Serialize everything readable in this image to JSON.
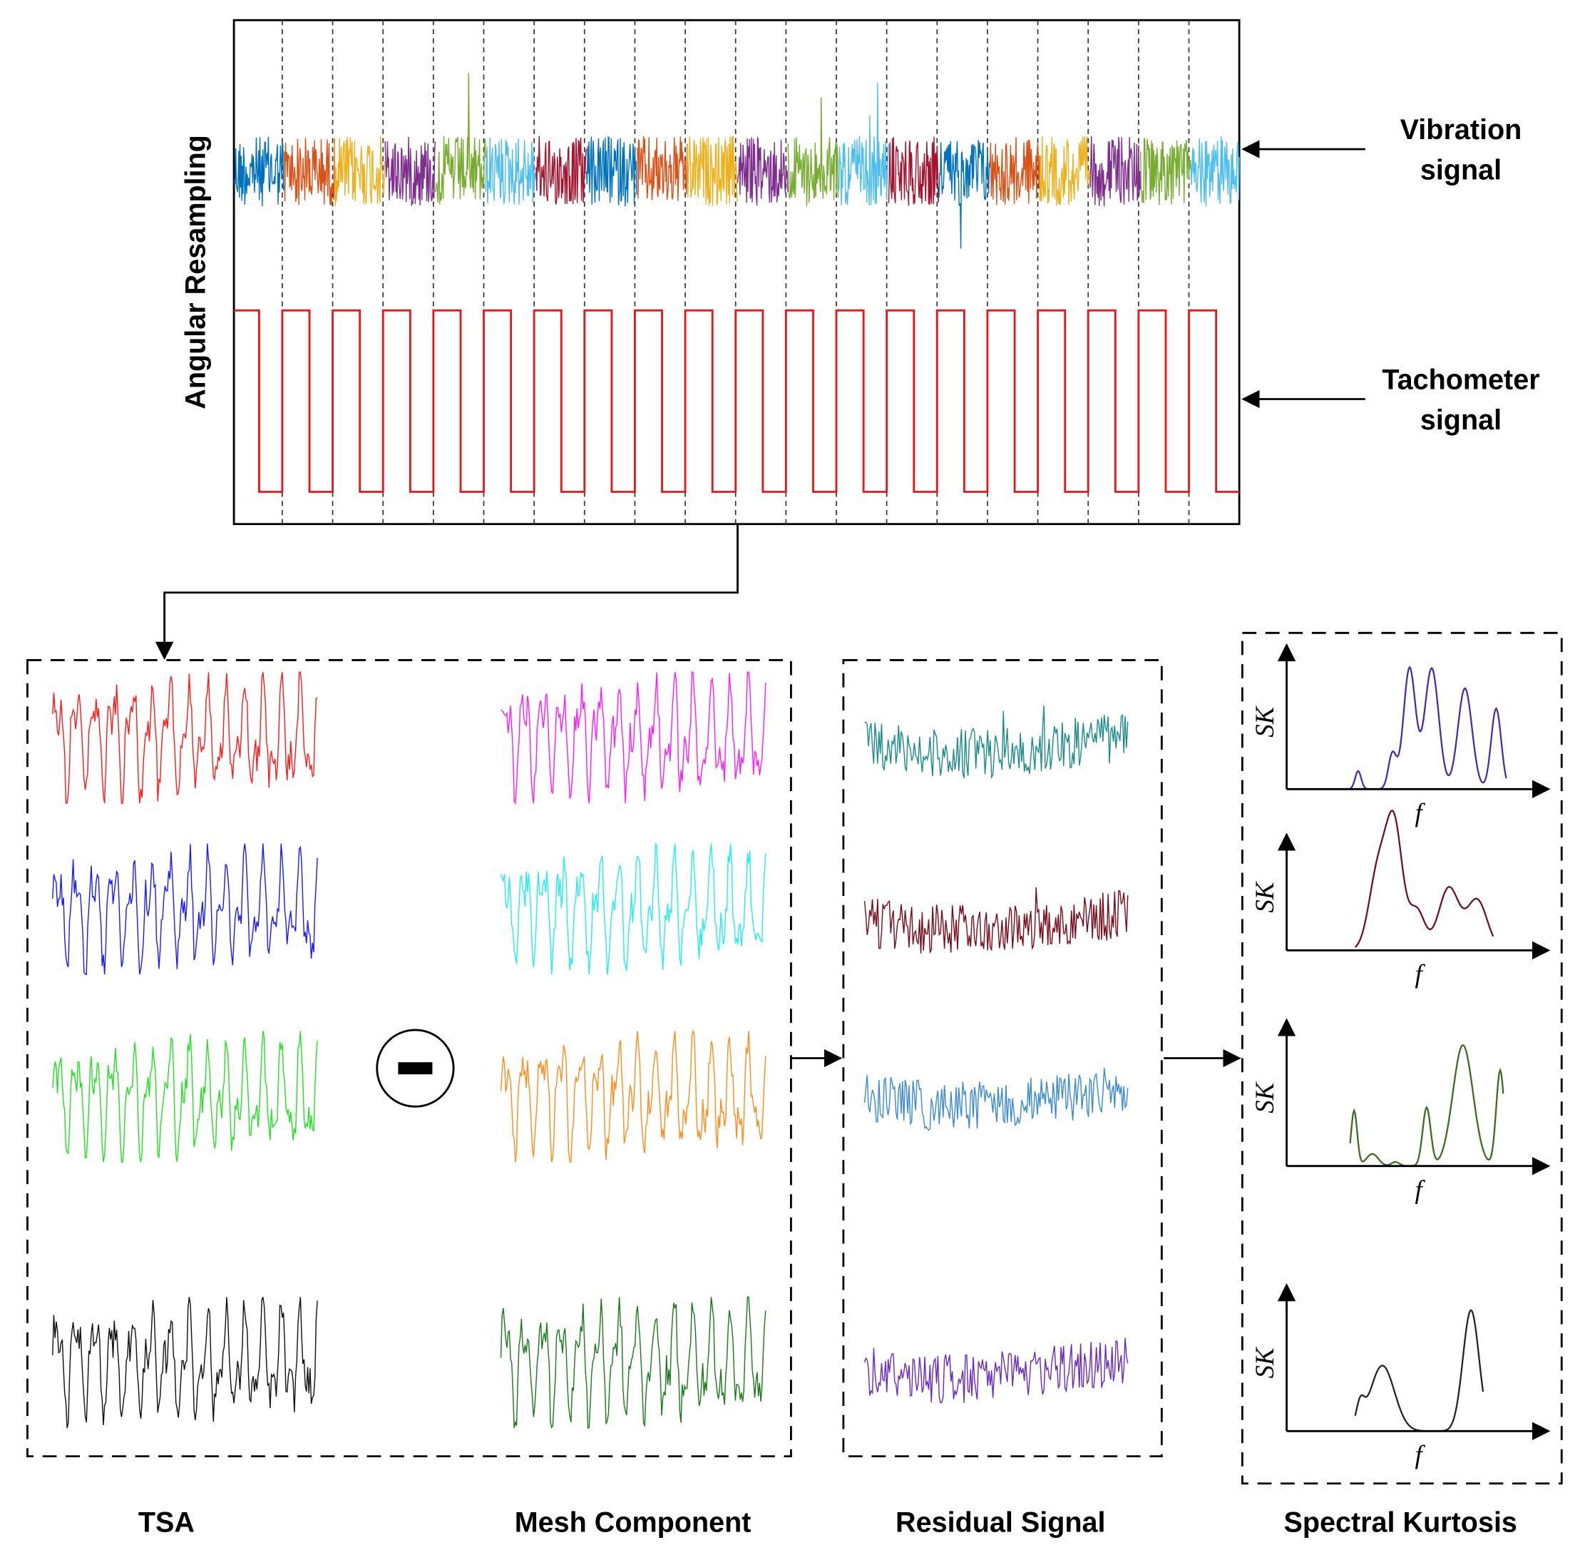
{
  "diagram": {
    "resampling_label": "Angular Resampling",
    "vibration_label": [
      "Vibration",
      "signal"
    ],
    "tachometer_label": [
      "Tachometer",
      "signal"
    ],
    "panels": [
      "TSA",
      "Mesh Component",
      "Residual Signal",
      "Spectral Kurtosis"
    ],
    "sk_axes": [
      {
        "y": "SK",
        "x": "f"
      },
      {
        "y": "SK",
        "x": "f"
      },
      {
        "y": "SK",
        "x": "f"
      },
      {
        "y": "SK",
        "x": "f"
      }
    ]
  }
}
